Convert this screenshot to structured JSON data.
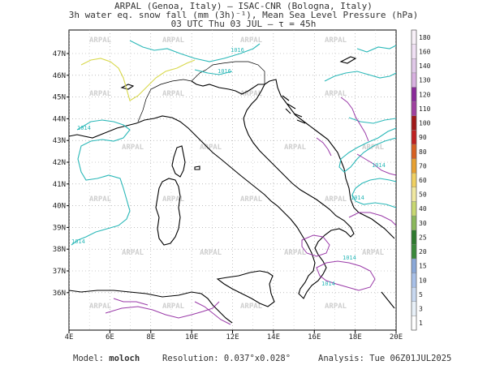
{
  "header": {
    "line1": "ARPAL (Genoa, Italy)  –  ISAC-CNR (Bologna, Italy)",
    "line2": "3h water eq. snow fall (mm (3h)⁻¹), Mean Sea Level Pressure (hPa)",
    "line3": "03 UTC Thu 03 JUL  –  τ = 45h"
  },
  "map": {
    "lon_labels": [
      "4E",
      "6E",
      "8E",
      "10E",
      "12E",
      "14E",
      "16E",
      "18E",
      "20E"
    ],
    "lat_labels": [
      "36N",
      "37N",
      "38N",
      "39N",
      "40N",
      "41N",
      "42N",
      "43N",
      "44N",
      "45N",
      "46N",
      "47N"
    ],
    "isobar_labels": [
      "1014",
      "1016",
      "1014",
      "1014",
      "1014",
      "1014",
      "1016",
      "1014"
    ],
    "watermark": "ARPAL",
    "colors": {
      "coast": "#000000",
      "isobar": "#2ab8b8",
      "isobar_yellow": "#d8d84a",
      "precip": "#9a3aa8",
      "grid": "#999999"
    }
  },
  "colorbar": {
    "labels": [
      "1",
      "3",
      "5",
      "10",
      "15",
      "20",
      "25",
      "30",
      "40",
      "50",
      "60",
      "70",
      "80",
      "90",
      "100",
      "110",
      "120",
      "130",
      "140",
      "160",
      "180"
    ],
    "colors": [
      "#ffffff",
      "#e8f0f8",
      "#c8d8f0",
      "#a8c0e8",
      "#8aa8d8",
      "#3a8a3a",
      "#2e7a2e",
      "#8ab85a",
      "#c8d870",
      "#f0e8a0",
      "#f0d060",
      "#e8a030",
      "#d86020",
      "#c02020",
      "#a01818",
      "#a040a0",
      "#8a2a9a",
      "#d8b0e0",
      "#e0c8e8",
      "#f0e0f4",
      "#f8f0f8"
    ]
  },
  "footer": {
    "model_label": "Model:",
    "model_value": "moloch",
    "resolution_label": "Resolution:",
    "resolution_value": "0.037°x0.028°",
    "analysis_label": "Analysis:",
    "analysis_value": "Tue 06Z01JUL2025"
  }
}
